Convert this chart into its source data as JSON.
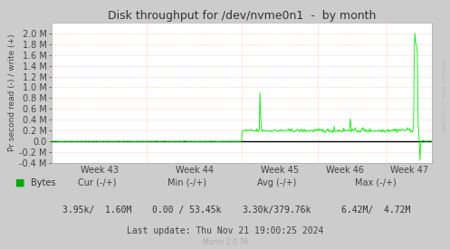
{
  "title": "Disk throughput for /dev/nvme0n1  -  by month",
  "ylabel": "Pr second read (-) / write (+)",
  "xlabel_ticks": [
    "Week 43",
    "Week 44",
    "Week 45",
    "Week 46",
    "Week 47"
  ],
  "ylim": [
    -400000.0,
    2200000.0
  ],
  "yticks": [
    -400000.0,
    -200000.0,
    0.0,
    200000.0,
    400000.0,
    600000.0,
    800000.0,
    1000000.0,
    1200000.0,
    1400000.0,
    1600000.0,
    1800000.0,
    2000000.0
  ],
  "ytick_labels": [
    "-0.4 M",
    "-0.2 M",
    "0.0",
    "0.2 M",
    "0.4 M",
    "0.6 M",
    "0.8 M",
    "1.0 M",
    "1.2 M",
    "1.4 M",
    "1.6 M",
    "1.8 M",
    "2.0 M"
  ],
  "bg_color": "#CCCCCC",
  "plot_bg_color": "#FFFFFF",
  "grid_color": "#FF9999",
  "line_color": "#00EE00",
  "zero_line_color": "#000000",
  "title_color": "#333333",
  "legend_box_color": "#00AA00",
  "footer_text": "Last update: Thu Nov 21 19:00:25 2024",
  "munin_text": "Munin 2.0.76",
  "legend_label": "Bytes",
  "cur_text": "Cur (-/+)",
  "cur_val": "3.95k/  1.60M",
  "min_text": "Min (-/+)",
  "min_val": "0.00 / 53.45k",
  "avg_text": "Avg (-/+)",
  "avg_val": "3.30k/379.76k",
  "max_text": "Max (-/+)",
  "max_val": "6.42M/  4.72M",
  "watermark": "RRDTOOL / TOBI OETIKER",
  "n_points": 600,
  "week_tick_positions": [
    75,
    225,
    360,
    462,
    564
  ],
  "week_vline_positions": [
    150,
    300,
    420,
    528
  ],
  "left_vline": 0,
  "right_vline": 600
}
